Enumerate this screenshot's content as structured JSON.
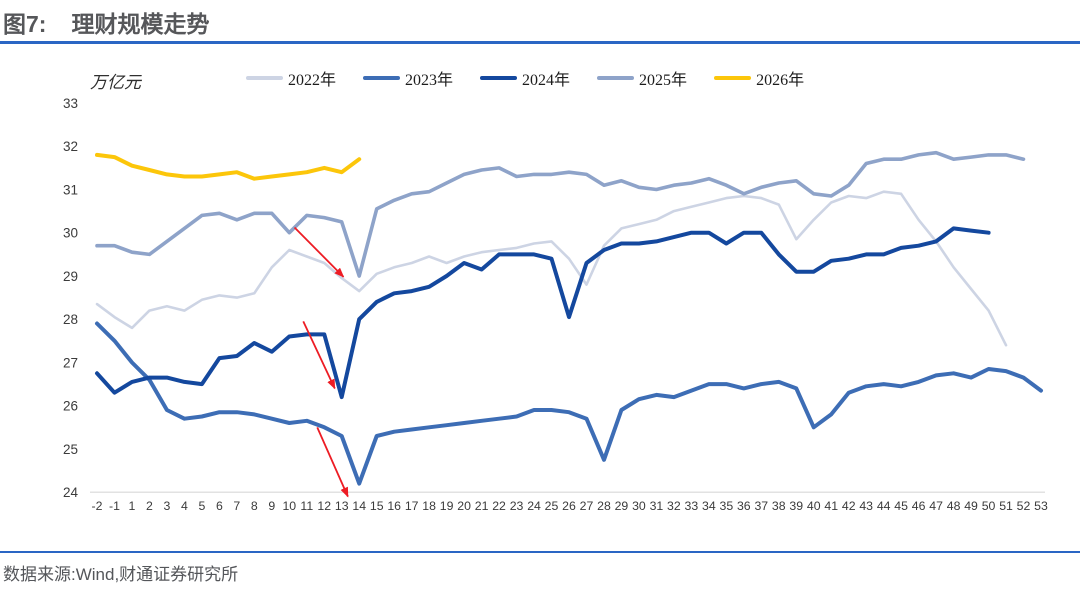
{
  "header": {
    "fig_label": "图7:",
    "title": "理财规模走势"
  },
  "footer": {
    "source": "数据来源:Wind,财通证券研究所"
  },
  "colors": {
    "accent_rule": "#2a66c4",
    "title_text": "#56575a",
    "axis_text": "#3b3b3b",
    "baseline": "#d9d9d9",
    "arrow": "#ed1c24"
  },
  "chart_data": {
    "type": "line",
    "title": "理财规模走势",
    "unit_label": "万亿元",
    "xlabel": "",
    "ylabel": "万亿元",
    "ylim": [
      24,
      33
    ],
    "yticks": [
      24,
      25,
      26,
      27,
      28,
      29,
      30,
      31,
      32,
      33
    ],
    "grid": false,
    "legend_position": "top",
    "x_categories": [
      "-2",
      "-1",
      "1",
      "2",
      "3",
      "4",
      "5",
      "6",
      "7",
      "8",
      "9",
      "10",
      "11",
      "12",
      "13",
      "14",
      "15",
      "16",
      "17",
      "18",
      "19",
      "20",
      "21",
      "22",
      "23",
      "24",
      "25",
      "26",
      "27",
      "28",
      "29",
      "30",
      "31",
      "32",
      "33",
      "34",
      "35",
      "36",
      "37",
      "38",
      "39",
      "40",
      "41",
      "42",
      "43",
      "44",
      "45",
      "46",
      "47",
      "48",
      "49",
      "50",
      "51",
      "52",
      "53"
    ],
    "series": [
      {
        "name": "2022年",
        "color": "#cdd4e4",
        "values": [
          28.35,
          28.05,
          27.8,
          28.2,
          28.3,
          28.2,
          28.45,
          28.55,
          28.5,
          28.6,
          29.2,
          29.6,
          29.45,
          29.3,
          28.95,
          28.65,
          29.05,
          29.2,
          29.3,
          29.45,
          29.3,
          29.45,
          29.55,
          29.6,
          29.65,
          29.75,
          29.8,
          29.4,
          28.8,
          29.7,
          30.1,
          30.2,
          30.3,
          30.5,
          30.6,
          30.7,
          30.8,
          30.85,
          30.8,
          30.65,
          29.85,
          30.3,
          30.7,
          30.85,
          30.8,
          30.95,
          30.9,
          30.3,
          29.8,
          29.2,
          28.7,
          28.2,
          27.4,
          null,
          null
        ]
      },
      {
        "name": "2023年",
        "color": "#3d6db5",
        "values": [
          27.9,
          27.5,
          27.0,
          26.6,
          25.9,
          25.7,
          25.75,
          25.85,
          25.85,
          25.8,
          25.7,
          25.6,
          25.65,
          25.5,
          25.3,
          24.2,
          25.3,
          25.4,
          25.45,
          25.5,
          25.55,
          25.6,
          25.65,
          25.7,
          25.75,
          25.9,
          25.9,
          25.85,
          25.7,
          24.75,
          25.9,
          26.15,
          26.25,
          26.2,
          26.35,
          26.5,
          26.5,
          26.4,
          26.5,
          26.55,
          26.4,
          25.5,
          25.8,
          26.3,
          26.45,
          26.5,
          26.45,
          26.55,
          26.7,
          26.75,
          26.65,
          26.85,
          26.8,
          26.65,
          26.35
        ]
      },
      {
        "name": "2024年",
        "color": "#14489e",
        "values": [
          26.75,
          26.3,
          26.55,
          26.65,
          26.65,
          26.55,
          26.5,
          27.1,
          27.15,
          27.45,
          27.25,
          27.6,
          27.65,
          27.65,
          26.2,
          28.0,
          28.4,
          28.6,
          28.65,
          28.75,
          29.0,
          29.3,
          29.15,
          29.5,
          29.5,
          29.5,
          29.4,
          28.05,
          29.3,
          29.6,
          29.75,
          29.75,
          29.8,
          29.9,
          30.0,
          30.0,
          29.75,
          30.0,
          30.0,
          29.5,
          29.1,
          29.1,
          29.35,
          29.4,
          29.5,
          29.5,
          29.65,
          29.7,
          29.8,
          30.1,
          30.05,
          30.0,
          null,
          null,
          null
        ]
      },
      {
        "name": "2025年",
        "color": "#8ea3c9",
        "values": [
          29.7,
          29.7,
          29.55,
          29.5,
          29.8,
          30.1,
          30.4,
          30.45,
          30.3,
          30.45,
          30.45,
          30.0,
          30.4,
          30.35,
          30.25,
          29.0,
          30.55,
          30.75,
          30.9,
          30.95,
          31.15,
          31.35,
          31.45,
          31.5,
          31.3,
          31.35,
          31.35,
          31.4,
          31.35,
          31.1,
          31.2,
          31.05,
          31.0,
          31.1,
          31.15,
          31.25,
          31.1,
          30.9,
          31.05,
          31.15,
          31.2,
          30.9,
          30.85,
          31.1,
          31.6,
          31.7,
          31.7,
          31.8,
          31.85,
          31.7,
          31.75,
          31.8,
          31.8,
          31.7,
          null
        ]
      },
      {
        "name": "2026年",
        "color": "#fcc60a",
        "values": [
          31.8,
          31.75,
          31.55,
          31.45,
          31.35,
          31.3,
          31.3,
          31.35,
          31.4,
          31.25,
          31.3,
          31.35,
          31.4,
          31.5,
          31.4,
          31.7,
          null,
          null,
          null,
          null,
          null,
          null,
          null,
          null,
          null,
          null,
          null,
          null,
          null,
          null,
          null,
          null,
          null,
          null,
          null,
          null,
          null,
          null,
          null,
          null,
          null,
          null,
          null,
          null,
          null,
          null,
          null,
          null,
          null,
          null,
          null,
          null,
          null,
          null,
          null
        ]
      }
    ],
    "annotations": {
      "arrow_color": "#ed1c24",
      "arrows": [
        {
          "from_week": 10.3,
          "from_value": 30.12,
          "to_week": 13.1,
          "to_value": 28.98
        },
        {
          "from_week": 10.8,
          "from_value": 27.95,
          "to_week": 12.6,
          "to_value": 26.4
        },
        {
          "from_week": 11.6,
          "from_value": 25.5,
          "to_week": 13.35,
          "to_value": 23.9
        }
      ]
    }
  }
}
